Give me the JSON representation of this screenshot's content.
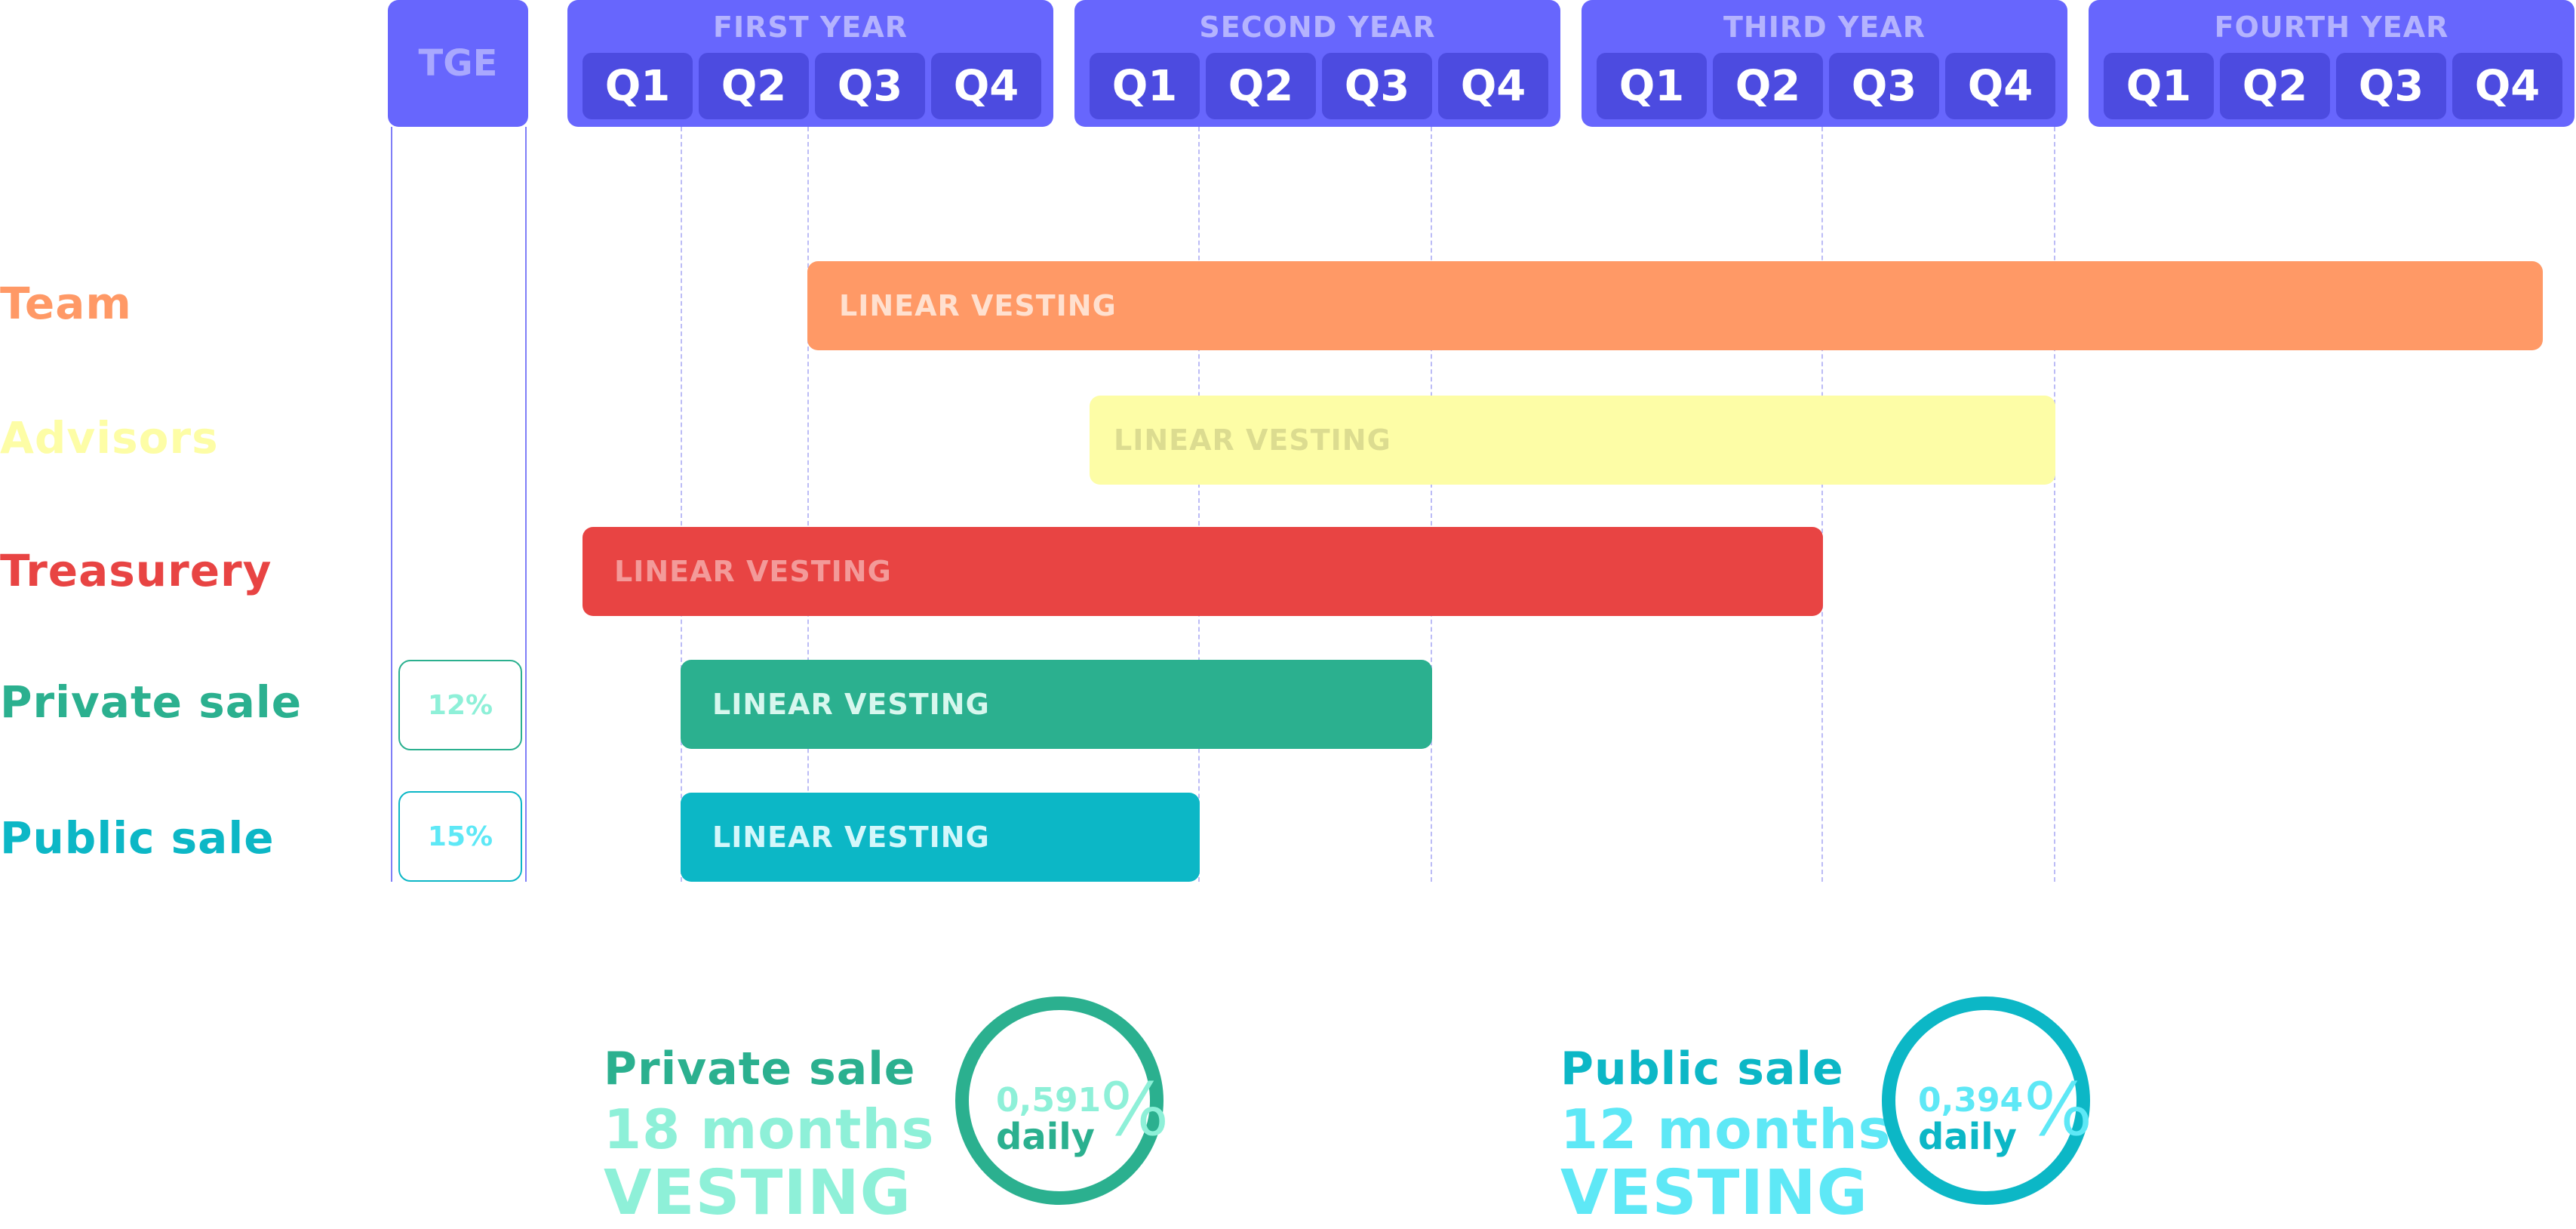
{
  "header": {
    "tge_label": "TGE",
    "years": [
      {
        "title": "FIRST YEAR",
        "quarters": [
          "Q1",
          "Q2",
          "Q3",
          "Q4"
        ]
      },
      {
        "title": "SECOND YEAR",
        "quarters": [
          "Q1",
          "Q2",
          "Q3",
          "Q4"
        ]
      },
      {
        "title": "THIRD YEAR",
        "quarters": [
          "Q1",
          "Q2",
          "Q3",
          "Q4"
        ]
      },
      {
        "title": "FOURTH YEAR",
        "quarters": [
          "Q1",
          "Q2",
          "Q3",
          "Q4"
        ]
      }
    ]
  },
  "rows": [
    {
      "label": "Team",
      "bar_text": "LINEAR VESTING",
      "color": "#ff9966",
      "text_color": "#ffe0cf",
      "tge_unlock": ""
    },
    {
      "label": "Advisors",
      "bar_text": "LINEAR VESTING",
      "color": "#fdfda6",
      "text_color": "#dcdc90",
      "tge_unlock": ""
    },
    {
      "label": "Treasurery",
      "bar_text": "LINEAR VESTING",
      "color": "#e84443",
      "text_color": "#f39a99",
      "tge_unlock": ""
    },
    {
      "label": "Private sale",
      "bar_text": "LINEAR VESTING",
      "color": "#2bb08f",
      "text_color": "#d7f7ee",
      "tge_unlock": "12%"
    },
    {
      "label": "Public sale",
      "bar_text": "LINEAR VESTING",
      "color": "#0cb7c6",
      "text_color": "#d4f7fb",
      "tge_unlock": "15%"
    }
  ],
  "summaries": {
    "private": {
      "title": "Private sale",
      "duration": "18 months",
      "word": "VESTING",
      "rate": "0,591",
      "daily": "daily",
      "pct": "%",
      "color": "#2bb08f",
      "light": "#8ef0d8"
    },
    "public": {
      "title": "Public sale",
      "duration": "12 months",
      "word": "VESTING",
      "rate": "0,394",
      "daily": "daily",
      "pct": "%",
      "color": "#0cb7c6",
      "light": "#5ee8f6"
    }
  }
}
